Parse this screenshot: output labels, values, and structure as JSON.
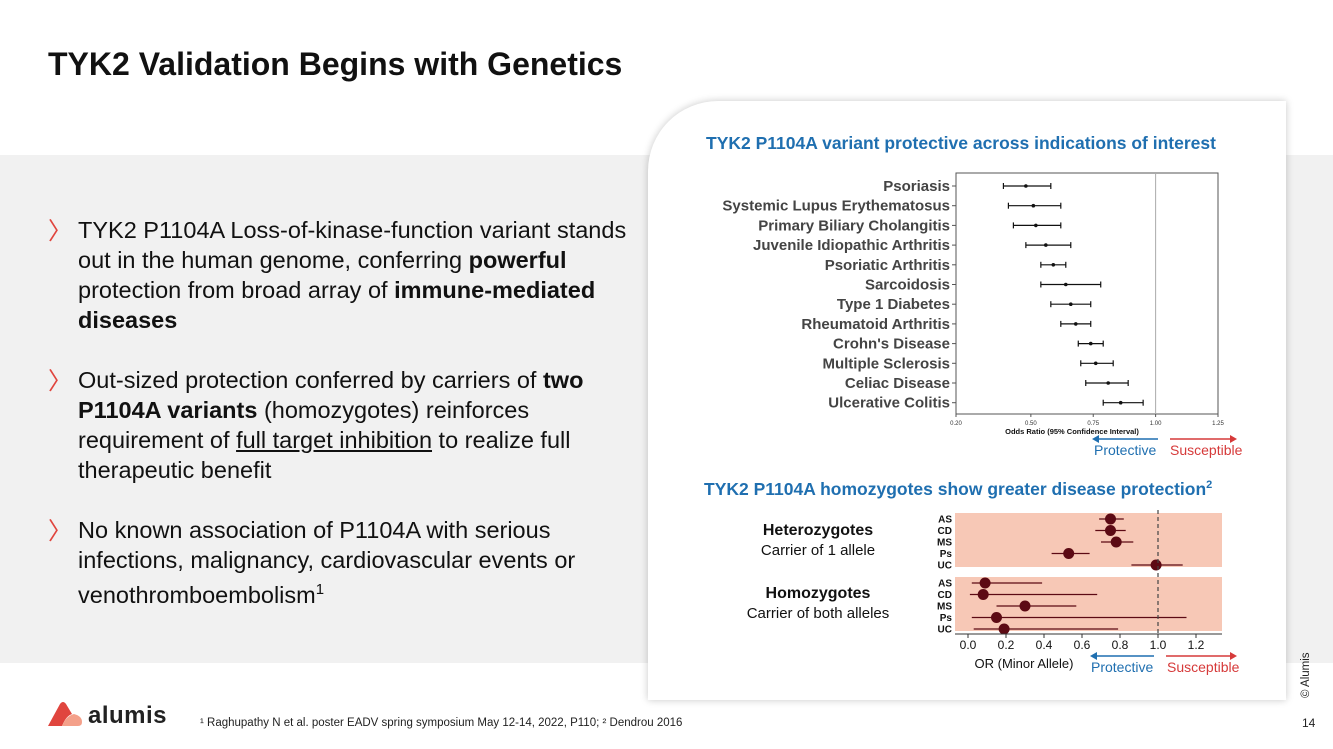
{
  "title": "TYK2 Validation Begins with Genetics",
  "bullets": [
    {
      "segments": [
        {
          "text": "TYK2 P1104A Loss-of-kinase-function variant stands out in the human genome, conferring ",
          "style": "normal"
        },
        {
          "text": "powerful",
          "style": "bold"
        },
        {
          "text": " protection from broad array of ",
          "style": "normal"
        },
        {
          "text": "immune-mediated diseases",
          "style": "bold"
        }
      ]
    },
    {
      "segments": [
        {
          "text": "Out-sized protection conferred by carriers of ",
          "style": "normal"
        },
        {
          "text": "two P1104A variants",
          "style": "bold"
        },
        {
          "text": " (homozygotes) reinforces requirement of ",
          "style": "normal"
        },
        {
          "text": "full target inhibition",
          "style": "underline"
        },
        {
          "text": " to realize full therapeutic benefit",
          "style": "normal"
        }
      ]
    },
    {
      "segments": [
        {
          "text": "No known association of P1104A with serious infections, malignancy, cardiovascular events or venothromboembolism",
          "style": "normal"
        },
        {
          "text": "1",
          "style": "sup"
        }
      ]
    }
  ],
  "chart_data": [
    {
      "type": "forest",
      "title": "TYK2 P1104A variant protective across indications of interest",
      "xlabel": "Odds Ratio (95% Confidence Interval)",
      "xlim": [
        0.2,
        1.25
      ],
      "xticks": [
        "0.20",
        "0.50",
        "0.75",
        "1.00",
        "1.25"
      ],
      "xtick_values": [
        0.2,
        0.5,
        0.75,
        1.0,
        1.25
      ],
      "reference_line": 1.0,
      "categories": [
        "Psoriasis",
        "Systemic Lupus Erythematosus",
        "Primary Biliary Cholangitis",
        "Juvenile Idiopathic Arthritis",
        "Psoriatic Arthritis",
        "Sarcoidosis",
        "Type 1 Diabetes",
        "Rheumatoid Arthritis",
        "Crohn's Disease",
        "Multiple Sclerosis",
        "Celiac Disease",
        "Ulcerative Colitis"
      ],
      "estimate": [
        0.48,
        0.51,
        0.52,
        0.56,
        0.59,
        0.64,
        0.66,
        0.68,
        0.74,
        0.76,
        0.81,
        0.86
      ],
      "lower": [
        0.39,
        0.41,
        0.43,
        0.48,
        0.54,
        0.54,
        0.58,
        0.62,
        0.69,
        0.7,
        0.72,
        0.79
      ],
      "upper": [
        0.58,
        0.62,
        0.62,
        0.66,
        0.64,
        0.78,
        0.74,
        0.74,
        0.79,
        0.83,
        0.89,
        0.95
      ]
    },
    {
      "type": "forest",
      "title": "TYK2 P1104A homozygotes show greater disease protection",
      "title_sup": "2",
      "xlabel": "OR (Minor Allele)",
      "xlim": [
        -0.05,
        1.32
      ],
      "xticks": [
        "0.0",
        "0.2",
        "0.4",
        "0.6",
        "0.8",
        "1.0",
        "1.2"
      ],
      "xtick_values": [
        0.0,
        0.2,
        0.4,
        0.6,
        0.8,
        1.0,
        1.2
      ],
      "reference_line": 1.0,
      "groups": [
        {
          "name": "Heterozygotes",
          "subtitle": "Carrier of 1 allele",
          "categories": [
            "AS",
            "CD",
            "MS",
            "Ps",
            "UC"
          ],
          "estimate": [
            0.75,
            0.75,
            0.78,
            0.53,
            0.99
          ],
          "lower": [
            0.69,
            0.67,
            0.7,
            0.44,
            0.86
          ],
          "upper": [
            0.82,
            0.83,
            0.87,
            0.64,
            1.13
          ]
        },
        {
          "name": "Homozygotes",
          "subtitle": "Carrier of both alleles",
          "categories": [
            "AS",
            "CD",
            "MS",
            "Ps",
            "UC"
          ],
          "estimate": [
            0.09,
            0.08,
            0.3,
            0.15,
            0.19
          ],
          "lower": [
            0.02,
            0.01,
            0.15,
            0.02,
            0.03
          ],
          "upper": [
            0.39,
            0.68,
            0.57,
            1.15,
            0.79
          ]
        }
      ]
    }
  ],
  "legend": {
    "protective": "Protective",
    "susceptible": "Susceptible"
  },
  "colors": {
    "protective": "#1f6fb0",
    "susceptible": "#d63a3a",
    "accent": "#e0453e",
    "band": "#f7c8b6",
    "dot": "#5c0a14"
  },
  "logo": {
    "text": "alumis"
  },
  "footnote": "¹ Raghupathy N et al. poster EADV spring symposium May 12-14, 2022, P110; ² Dendrou 2016",
  "page_number": "14",
  "copyright": "© Alumis"
}
